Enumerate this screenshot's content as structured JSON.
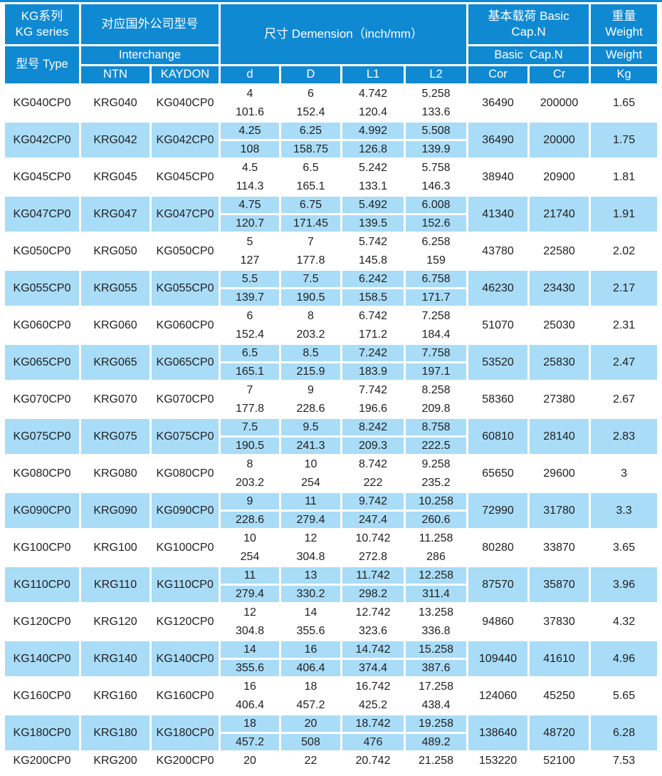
{
  "header": {
    "series_zh": "KG系列",
    "series_en": "KG series",
    "type_label": "型号 Type",
    "interchange_zh": "对应国外公司型号",
    "interchange_en": "Interchange",
    "ntn": "NTN",
    "kaydon": "KAYDON",
    "dimension": "尺寸 Demension（inch/mm）",
    "dim_cols": [
      "d",
      "D",
      "L1",
      "L2"
    ],
    "cap_zh_line1": "基本载荷 Basic",
    "cap_zh_line2": "Cap.N",
    "cap_mid": "Basic  Cap.N",
    "cor": "Cor",
    "cr": "Cr",
    "weight_zh": "重量",
    "weight_en": "Weight",
    "weight_mid": "Weight",
    "kg": "Kg"
  },
  "colors": {
    "header_blue": "#1089d3",
    "row_blue": "#a9dcf7",
    "text_dark": "#1f1f1f",
    "background": "#ffffff"
  },
  "rows": [
    {
      "model": "KG040CP0",
      "ntn": "KRG040",
      "kaydon": "KG040CP0",
      "d_in": "4",
      "d_mm": "101.6",
      "D_in": "6",
      "D_mm": "152.4",
      "L1_in": "4.742",
      "L1_mm": "120.4",
      "L2_in": "5.258",
      "L2_mm": "133.6",
      "cor": "36490",
      "cr": "200000",
      "kg": "1.65"
    },
    {
      "model": "KG042CP0",
      "ntn": "KRG042",
      "kaydon": "KG042CP0",
      "d_in": "4.25",
      "d_mm": "108",
      "D_in": "6.25",
      "D_mm": "158.75",
      "L1_in": "4.992",
      "L1_mm": "126.8",
      "L2_in": "5.508",
      "L2_mm": "139.9",
      "cor": "36490",
      "cr": "20000",
      "kg": "1.75"
    },
    {
      "model": "KG045CP0",
      "ntn": "KRG045",
      "kaydon": "KG045CP0",
      "d_in": "4.5",
      "d_mm": "114.3",
      "D_in": "6.5",
      "D_mm": "165.1",
      "L1_in": "5.242",
      "L1_mm": "133.1",
      "L2_in": "5.758",
      "L2_mm": "146.3",
      "cor": "38940",
      "cr": "20900",
      "kg": "1.81"
    },
    {
      "model": "KG047CP0",
      "ntn": "KRG047",
      "kaydon": "KG047CP0",
      "d_in": "4.75",
      "d_mm": "120.7",
      "D_in": "6.75",
      "D_mm": "171.45",
      "L1_in": "5.492",
      "L1_mm": "139.5",
      "L2_in": "6.008",
      "L2_mm": "152.6",
      "cor": "41340",
      "cr": "21740",
      "kg": "1.91"
    },
    {
      "model": "KG050CP0",
      "ntn": "KRG050",
      "kaydon": "KG050CP0",
      "d_in": "5",
      "d_mm": "127",
      "D_in": "7",
      "D_mm": "177.8",
      "L1_in": "5.742",
      "L1_mm": "145.8",
      "L2_in": "6.258",
      "L2_mm": "159",
      "cor": "43780",
      "cr": "22580",
      "kg": "2.02"
    },
    {
      "model": "KG055CP0",
      "ntn": "KRG055",
      "kaydon": "KG055CP0",
      "d_in": "5.5",
      "d_mm": "139.7",
      "D_in": "7.5",
      "D_mm": "190.5",
      "L1_in": "6.242",
      "L1_mm": "158.5",
      "L2_in": "6.758",
      "L2_mm": "171.7",
      "cor": "46230",
      "cr": "23430",
      "kg": "2.17"
    },
    {
      "model": "KG060CP0",
      "ntn": "KRG060",
      "kaydon": "KG060CP0",
      "d_in": "6",
      "d_mm": "152.4",
      "D_in": "8",
      "D_mm": "203.2",
      "L1_in": "6.742",
      "L1_mm": "171.2",
      "L2_in": "7.258",
      "L2_mm": "184.4",
      "cor": "51070",
      "cr": "25030",
      "kg": "2.31"
    },
    {
      "model": "KG065CP0",
      "ntn": "KRG065",
      "kaydon": "KG065CP0",
      "d_in": "6.5",
      "d_mm": "165.1",
      "D_in": "8.5",
      "D_mm": "215.9",
      "L1_in": "7.242",
      "L1_mm": "183.9",
      "L2_in": "7.758",
      "L2_mm": "197.1",
      "cor": "53520",
      "cr": "25830",
      "kg": "2.47"
    },
    {
      "model": "KG070CP0",
      "ntn": "KRG070",
      "kaydon": "KG070CP0",
      "d_in": "7",
      "d_mm": "177.8",
      "D_in": "9",
      "D_mm": "228.6",
      "L1_in": "7.742",
      "L1_mm": "196.6",
      "L2_in": "8.258",
      "L2_mm": "209.8",
      "cor": "58360",
      "cr": "27380",
      "kg": "2.67"
    },
    {
      "model": "KG075CP0",
      "ntn": "KRG075",
      "kaydon": "KG075CP0",
      "d_in": "7.5",
      "d_mm": "190.5",
      "D_in": "9.5",
      "D_mm": "241.3",
      "L1_in": "8.242",
      "L1_mm": "209.3",
      "L2_in": "8.758",
      "L2_mm": "222.5",
      "cor": "60810",
      "cr": "28140",
      "kg": "2.83"
    },
    {
      "model": "KG080CP0",
      "ntn": "KRG080",
      "kaydon": "KG080CP0",
      "d_in": "8",
      "d_mm": "203.2",
      "D_in": "10",
      "D_mm": "254",
      "L1_in": "8.742",
      "L1_mm": "222",
      "L2_in": "9.258",
      "L2_mm": "235.2",
      "cor": "65650",
      "cr": "29600",
      "kg": "3"
    },
    {
      "model": "KG090CP0",
      "ntn": "KRG090",
      "kaydon": "KG090CP0",
      "d_in": "9",
      "d_mm": "228.6",
      "D_in": "11",
      "D_mm": "279.4",
      "L1_in": "9.742",
      "L1_mm": "247.4",
      "L2_in": "10.258",
      "L2_mm": "260.6",
      "cor": "72990",
      "cr": "31780",
      "kg": "3.3"
    },
    {
      "model": "KG100CP0",
      "ntn": "KRG100",
      "kaydon": "KG100CP0",
      "d_in": "10",
      "d_mm": "254",
      "D_in": "12",
      "D_mm": "304.8",
      "L1_in": "10.742",
      "L1_mm": "272.8",
      "L2_in": "11.258",
      "L2_mm": "286",
      "cor": "80280",
      "cr": "33870",
      "kg": "3.65"
    },
    {
      "model": "KG110CP0",
      "ntn": "KRG110",
      "kaydon": "KG110CP0",
      "d_in": "11",
      "d_mm": "279.4",
      "D_in": "13",
      "D_mm": "330.2",
      "L1_in": "11.742",
      "L1_mm": "298.2",
      "L2_in": "12.258",
      "L2_mm": "311.4",
      "cor": "87570",
      "cr": "35870",
      "kg": "3.96"
    },
    {
      "model": "KG120CP0",
      "ntn": "KRG120",
      "kaydon": "KG120CP0",
      "d_in": "12",
      "d_mm": "304.8",
      "D_in": "14",
      "D_mm": "355.6",
      "L1_in": "12.742",
      "L1_mm": "323.6",
      "L2_in": "13.258",
      "L2_mm": "336.8",
      "cor": "94860",
      "cr": "37830",
      "kg": "4.32"
    },
    {
      "model": "KG140CP0",
      "ntn": "KRG140",
      "kaydon": "KG140CP0",
      "d_in": "14",
      "d_mm": "355.6",
      "D_in": "16",
      "D_mm": "406.4",
      "L1_in": "14.742",
      "L1_mm": "374.4",
      "L2_in": "15.258",
      "L2_mm": "387.6",
      "cor": "109440",
      "cr": "41610",
      "kg": "4.96"
    },
    {
      "model": "KG160CP0",
      "ntn": "KRG160",
      "kaydon": "KG160CP0",
      "d_in": "16",
      "d_mm": "406.4",
      "D_in": "18",
      "D_mm": "457.2",
      "L1_in": "16.742",
      "L1_mm": "425.2",
      "L2_in": "17.258",
      "L2_mm": "438.4",
      "cor": "124060",
      "cr": "45250",
      "kg": "5.65"
    },
    {
      "model": "KG180CP0",
      "ntn": "KRG180",
      "kaydon": "KG180CP0",
      "d_in": "18",
      "d_mm": "457.2",
      "D_in": "20",
      "D_mm": "508",
      "L1_in": "18.742",
      "L1_mm": "476",
      "L2_in": "19.258",
      "L2_mm": "489.2",
      "cor": "138640",
      "cr": "48720",
      "kg": "6.28"
    },
    {
      "model": "KG200CP0",
      "ntn": "KRG200",
      "kaydon": "KG200CP0",
      "d_in": "20",
      "d_mm": "",
      "D_in": "22",
      "D_mm": "",
      "L1_in": "20.742",
      "L1_mm": "",
      "L2_in": "21.258",
      "L2_mm": "",
      "cor": "153220",
      "cr": "52100",
      "kg": "7.53"
    }
  ]
}
